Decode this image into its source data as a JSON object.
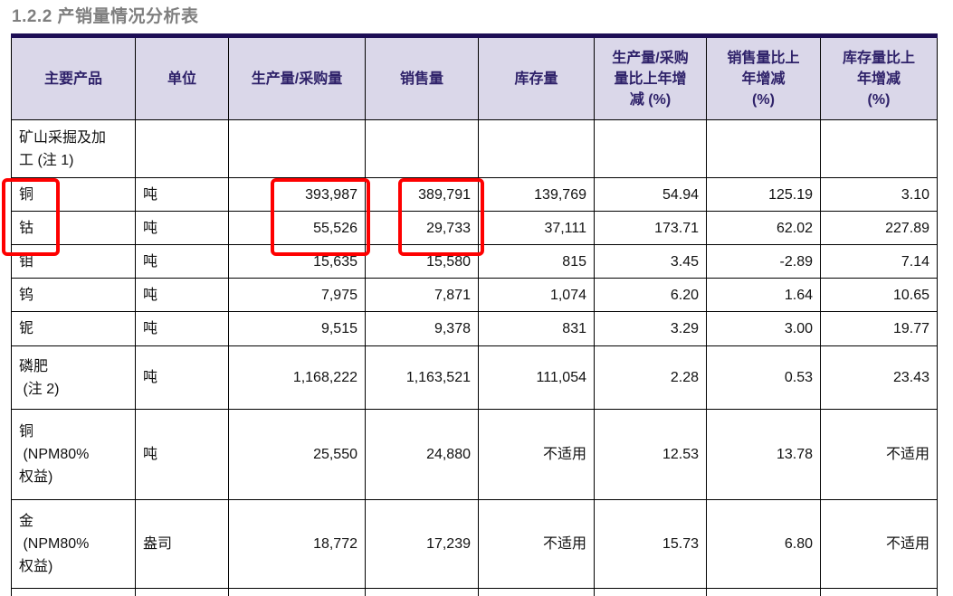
{
  "title": "1.2.2 产销量情况分析表",
  "table": {
    "headers": [
      "主要产品",
      "单位",
      "生产量/采购量",
      "销售量",
      "库存量",
      "生产量/采购\n量比上年增\n减 (%)",
      "销售量比上\n年增减\n(%)",
      "库存量比上\n年增减\n(%)"
    ],
    "rows": [
      {
        "cells": [
          "矿山采掘及加\n工 (注 1)",
          "",
          "",
          "",
          "",
          "",
          "",
          ""
        ]
      },
      {
        "cells": [
          "铜",
          "吨",
          "393,987",
          "389,791",
          "139,769",
          "54.94",
          "125.19",
          "3.10"
        ]
      },
      {
        "cells": [
          "钴",
          "吨",
          "55,526",
          "29,733",
          "37,111",
          "173.71",
          "62.02",
          "227.89"
        ]
      },
      {
        "cells": [
          "钼",
          "吨",
          "15,635",
          "15,580",
          "815",
          "3.45",
          "-2.89",
          "7.14"
        ]
      },
      {
        "cells": [
          "钨",
          "吨",
          "7,975",
          "7,871",
          "1,074",
          "6.20",
          "1.64",
          "10.65"
        ]
      },
      {
        "cells": [
          "铌",
          "吨",
          "9,515",
          "9,378",
          "831",
          "3.29",
          "3.00",
          "19.77"
        ]
      },
      {
        "cells": [
          "磷肥\n (注 2)",
          "吨",
          "1,168,222",
          "1,163,521",
          "111,054",
          "2.28",
          "0.53",
          "23.43"
        ]
      },
      {
        "cells": [
          "铜\n (NPM80%\n权益)",
          "吨",
          "25,550",
          "24,880",
          "不适用",
          "12.53",
          "13.78",
          "不适用"
        ]
      },
      {
        "cells": [
          "金\n (NPM80%\n权益)",
          "盎司",
          "18,772",
          "17,239",
          "不适用",
          "15.73",
          "6.80",
          "不适用"
        ]
      },
      {
        "cells": [
          "",
          "",
          "",
          "",
          "",
          "",
          "",
          ""
        ]
      }
    ]
  },
  "highlights": [
    {
      "name": "copper-cobalt-product-names",
      "rows": [
        "铜",
        "钴"
      ],
      "column": "主要产品"
    },
    {
      "name": "copper-cobalt-production-values",
      "values": [
        "393,987",
        "55,526"
      ],
      "column": "生产量/采购量"
    },
    {
      "name": "copper-cobalt-sales-values",
      "values": [
        "389,791",
        "29,733"
      ],
      "column": "销售量"
    }
  ],
  "colors": {
    "accent_bar": "#1d0e55",
    "header_bg": "#dad7e9",
    "header_text": "#2e2169",
    "grid": "#000000",
    "title_gray": "#7f7f7f",
    "highlight_red": "#fe0000",
    "body_text": "#111111"
  }
}
